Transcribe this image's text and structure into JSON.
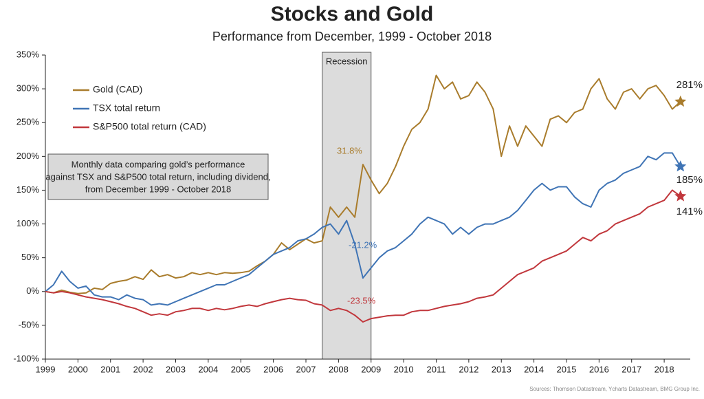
{
  "chart_data": {
    "type": "line",
    "title": "Stocks and Gold",
    "subtitle": "Performance from December, 1999 - October 2018",
    "source": "Sources: Thomson Datastream, Ycharts Datastream, BMG Group Inc.",
    "note": [
      "Monthly data comparing gold’s performance",
      "against TSX and S&P500 total return, including dividend,",
      "from December 1999 - October 2018"
    ],
    "recession": {
      "label": "Recession",
      "start": 2007.5,
      "end": 2009.0
    },
    "xlim": [
      1999,
      2018.8
    ],
    "xticks": [
      1999,
      2000,
      2001,
      2002,
      2003,
      2004,
      2005,
      2006,
      2007,
      2008,
      2009,
      2010,
      2011,
      2012,
      2013,
      2014,
      2015,
      2016,
      2017,
      2018
    ],
    "ylim": [
      -100,
      350
    ],
    "yticks": [
      {
        "value": -100,
        "label": "-100%"
      },
      {
        "value": -50,
        "label": "-50%"
      },
      {
        "value": 0,
        "label": "0%"
      },
      {
        "value": 50,
        "label": "50%"
      },
      {
        "value": 100,
        "label": "100%"
      },
      {
        "value": 150,
        "label": "150%"
      },
      {
        "value": 200,
        "label": "200%"
      },
      {
        "value": 250,
        "label": "250%"
      },
      {
        "value": 300,
        "label": "300%"
      },
      {
        "value": 350,
        "label": "350%"
      }
    ],
    "grid": false,
    "legend": "upper left",
    "x": [
      1999,
      1999.25,
      1999.5,
      1999.75,
      2000,
      2000.25,
      2000.5,
      2000.75,
      2001,
      2001.25,
      2001.5,
      2001.75,
      2002,
      2002.25,
      2002.5,
      2002.75,
      2003,
      2003.25,
      2003.5,
      2003.75,
      2004,
      2004.25,
      2004.5,
      2004.75,
      2005,
      2005.25,
      2005.5,
      2005.75,
      2006,
      2006.25,
      2006.5,
      2006.75,
      2007,
      2007.25,
      2007.5,
      2007.75,
      2008,
      2008.25,
      2008.5,
      2008.75,
      2009,
      2009.25,
      2009.5,
      2009.75,
      2010,
      2010.25,
      2010.5,
      2010.75,
      2011,
      2011.25,
      2011.5,
      2011.75,
      2012,
      2012.25,
      2012.5,
      2012.75,
      2013,
      2013.25,
      2013.5,
      2013.75,
      2014,
      2014.25,
      2014.5,
      2014.75,
      2015,
      2015.25,
      2015.5,
      2015.75,
      2016,
      2016.25,
      2016.5,
      2016.75,
      2017,
      2017.25,
      2017.5,
      2017.75,
      2018,
      2018.25,
      2018.5
    ],
    "series": [
      {
        "name": "Gold (CAD)",
        "color": "#a97c2c",
        "recession_label": "31.8%",
        "end_label": "281%",
        "values": [
          0,
          -2,
          2,
          -1,
          -3,
          -2,
          5,
          3,
          12,
          15,
          17,
          22,
          18,
          32,
          22,
          25,
          20,
          22,
          28,
          25,
          28,
          25,
          28,
          27,
          28,
          30,
          38,
          45,
          55,
          72,
          62,
          70,
          78,
          72,
          75,
          125,
          110,
          125,
          110,
          188,
          165,
          145,
          160,
          185,
          215,
          240,
          250,
          270,
          320,
          300,
          310,
          285,
          290,
          310,
          295,
          270,
          200,
          245,
          215,
          245,
          230,
          215,
          255,
          260,
          250,
          265,
          270,
          300,
          315,
          285,
          270,
          295,
          300,
          285,
          300,
          305,
          290,
          270,
          281
        ]
      },
      {
        "name": "TSX total return",
        "color": "#3f74b5",
        "recession_label": "-21.2%",
        "end_label": "185%",
        "values": [
          0,
          10,
          30,
          15,
          5,
          8,
          -5,
          -8,
          -8,
          -12,
          -5,
          -10,
          -12,
          -20,
          -18,
          -20,
          -15,
          -10,
          -5,
          0,
          5,
          10,
          10,
          15,
          20,
          25,
          35,
          45,
          55,
          60,
          65,
          75,
          78,
          85,
          95,
          100,
          85,
          105,
          70,
          20,
          35,
          50,
          60,
          65,
          75,
          85,
          100,
          110,
          105,
          100,
          85,
          95,
          85,
          95,
          100,
          100,
          105,
          110,
          120,
          135,
          150,
          160,
          150,
          155,
          155,
          140,
          130,
          125,
          150,
          160,
          165,
          175,
          180,
          185,
          200,
          195,
          205,
          205,
          185
        ]
      },
      {
        "name": "S&P500 total return (CAD)",
        "color": "#c1373c",
        "recession_label": "-23.5%",
        "end_label": "141%",
        "values": [
          0,
          -2,
          0,
          -2,
          -5,
          -8,
          -10,
          -12,
          -15,
          -18,
          -22,
          -25,
          -30,
          -35,
          -33,
          -35,
          -30,
          -28,
          -25,
          -25,
          -28,
          -25,
          -27,
          -25,
          -22,
          -20,
          -22,
          -18,
          -15,
          -12,
          -10,
          -12,
          -13,
          -18,
          -20,
          -28,
          -25,
          -28,
          -35,
          -45,
          -40,
          -38,
          -36,
          -35,
          -35,
          -30,
          -28,
          -28,
          -25,
          -22,
          -20,
          -18,
          -15,
          -10,
          -8,
          -5,
          5,
          15,
          25,
          30,
          35,
          45,
          50,
          55,
          60,
          70,
          80,
          75,
          85,
          90,
          100,
          105,
          110,
          115,
          125,
          130,
          135,
          150,
          141
        ]
      }
    ]
  }
}
